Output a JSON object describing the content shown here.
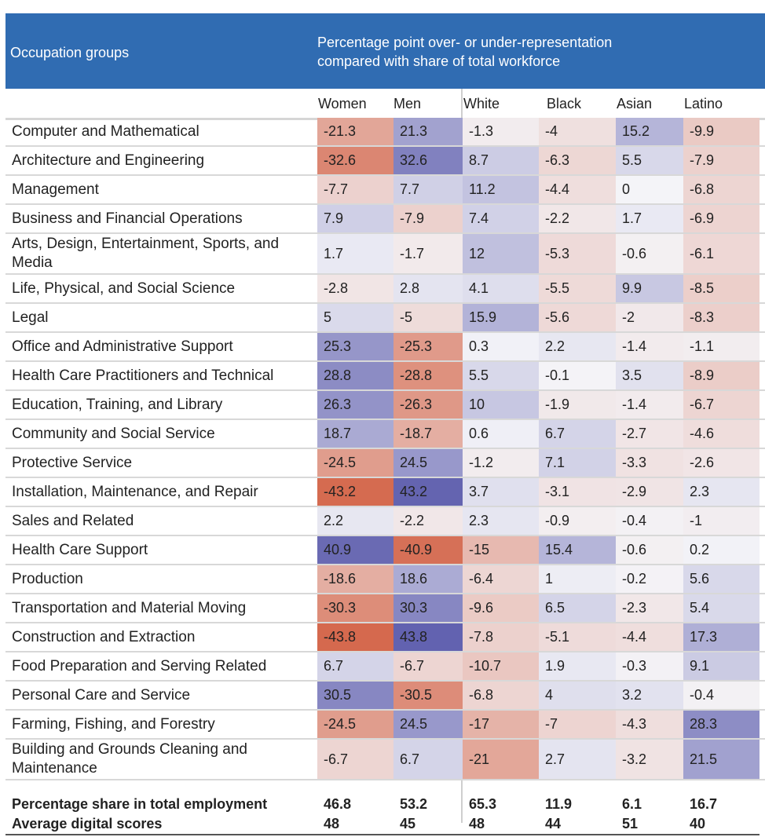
{
  "header": {
    "left_title": "Occupation groups",
    "subtitle_line1": "Percentage point over- or under-representation",
    "subtitle_line2": "compared with share of total workforce"
  },
  "colors": {
    "header_bg": "#306cb2",
    "negative_max": "#d4664a",
    "positive_max": "#5f5fae",
    "neutral": "#f4f4f8"
  },
  "chart_data": {
    "type": "heatmap",
    "title": "Percentage point over- or under-representation compared with share of total workforce",
    "row_header": "Occupation groups",
    "columns": [
      "Women",
      "Men",
      "White",
      "Black",
      "Asian",
      "Latino"
    ],
    "rows": [
      {
        "label": "Computer and Mathematical",
        "values": [
          -21.3,
          21.3,
          -1.3,
          -4,
          15.2,
          -9.9
        ]
      },
      {
        "label": "Architecture and Engineering",
        "values": [
          -32.6,
          32.6,
          8.7,
          -6.3,
          5.5,
          -7.9
        ]
      },
      {
        "label": "Management",
        "values": [
          -7.7,
          7.7,
          11.2,
          -4.4,
          0,
          -6.8
        ]
      },
      {
        "label": "Business and Financial Operations",
        "values": [
          7.9,
          -7.9,
          7.4,
          -2.2,
          1.7,
          -6.9
        ]
      },
      {
        "label": "Arts, Design, Entertainment, Sports, and Media",
        "values": [
          1.7,
          -1.7,
          12,
          -5.3,
          -0.6,
          -6.1
        ]
      },
      {
        "label": "Life, Physical, and Social Science",
        "values": [
          -2.8,
          2.8,
          4.1,
          -5.5,
          9.9,
          -8.5
        ]
      },
      {
        "label": "Legal",
        "values": [
          5,
          -5,
          15.9,
          -5.6,
          -2,
          -8.3
        ]
      },
      {
        "label": "Office and Administrative Support",
        "values": [
          25.3,
          -25.3,
          0.3,
          2.2,
          -1.4,
          -1.1
        ]
      },
      {
        "label": "Health Care Practitioners and Technical",
        "values": [
          28.8,
          -28.8,
          5.5,
          -0.1,
          3.5,
          -8.9
        ]
      },
      {
        "label": "Education, Training, and Library",
        "values": [
          26.3,
          -26.3,
          10,
          -1.9,
          -1.4,
          -6.7
        ]
      },
      {
        "label": "Community and Social Service",
        "values": [
          18.7,
          -18.7,
          0.6,
          6.7,
          -2.7,
          -4.6
        ]
      },
      {
        "label": "Protective Service",
        "values": [
          -24.5,
          24.5,
          -1.2,
          7.1,
          -3.3,
          -2.6
        ]
      },
      {
        "label": "Installation, Maintenance, and Repair",
        "values": [
          -43.2,
          43.2,
          3.7,
          -3.1,
          -2.9,
          2.3
        ]
      },
      {
        "label": "Sales and Related",
        "values": [
          2.2,
          -2.2,
          2.3,
          -0.9,
          -0.4,
          -1
        ]
      },
      {
        "label": "Health Care Support",
        "values": [
          40.9,
          -40.9,
          -15,
          15.4,
          -0.6,
          0.2
        ]
      },
      {
        "label": "Production",
        "values": [
          -18.6,
          18.6,
          -6.4,
          1,
          -0.2,
          5.6
        ]
      },
      {
        "label": "Transportation and Material Moving",
        "values": [
          -30.3,
          30.3,
          -9.6,
          6.5,
          -2.3,
          5.4
        ]
      },
      {
        "label": "Construction and Extraction",
        "values": [
          -43.8,
          43.8,
          -7.8,
          -5.1,
          -4.4,
          17.3
        ]
      },
      {
        "label": "Food Preparation and Serving Related",
        "values": [
          6.7,
          -6.7,
          -10.7,
          1.9,
          -0.3,
          9.1
        ]
      },
      {
        "label": "Personal Care and Service",
        "values": [
          30.5,
          -30.5,
          -6.8,
          4,
          3.2,
          -0.4
        ]
      },
      {
        "label": "Farming, Fishing, and Forestry",
        "values": [
          -24.5,
          24.5,
          -17,
          -7,
          -4.3,
          28.3
        ]
      },
      {
        "label": "Building and Grounds Cleaning and Maintenance",
        "values": [
          -6.7,
          6.7,
          -21,
          2.7,
          -3.2,
          21.5
        ]
      }
    ],
    "footer_rows": [
      {
        "label": "Percentage share in total employment",
        "values": [
          "46.8",
          "53.2",
          "65.3",
          "11.9",
          "6.1",
          "16.7"
        ]
      },
      {
        "label": "Average digital scores",
        "values": [
          "48",
          "45",
          "48",
          "44",
          "51",
          "40"
        ]
      }
    ],
    "color_scale": {
      "min": -45,
      "max": 45,
      "negative": "red",
      "positive": "blue"
    }
  }
}
